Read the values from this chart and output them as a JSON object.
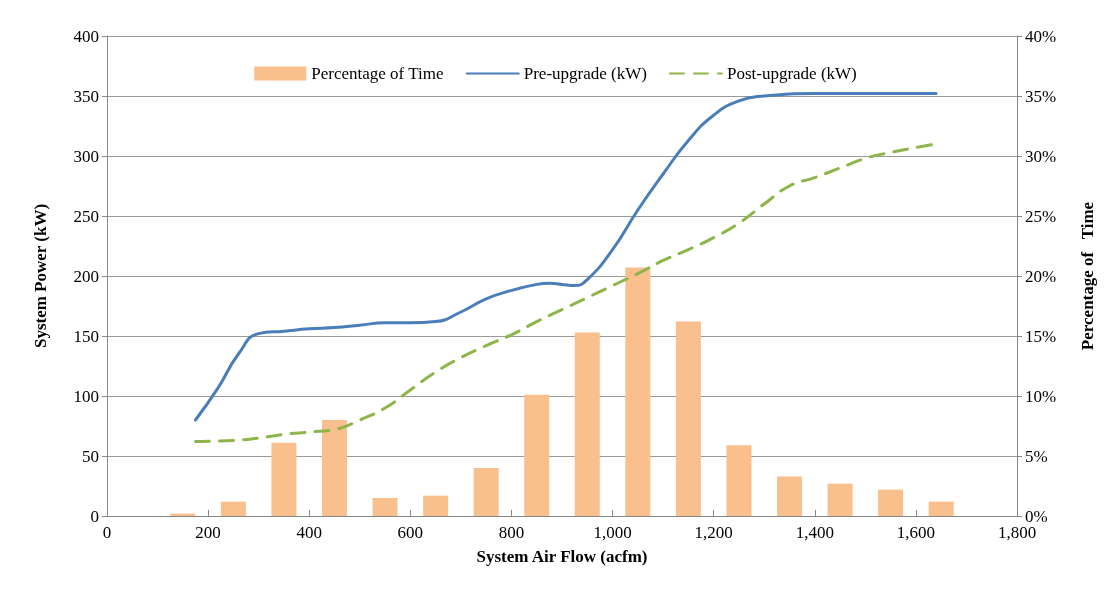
{
  "chart_data": {
    "type": "line",
    "xlabel": "System Air Flow (acfm)",
    "ylabel": "System Power (kW)",
    "y2label": "Percentage of   Time",
    "xlim": [
      0,
      1800
    ],
    "xticks": [
      0,
      200,
      400,
      600,
      800,
      {
        "value": 1000,
        "label": "1,000"
      },
      {
        "value": 1200,
        "label": "1,200"
      },
      {
        "value": 1400,
        "label": "1,400"
      },
      {
        "value": 1600,
        "label": "1,600"
      },
      {
        "value": 1800,
        "label": "1,800"
      }
    ],
    "ylim": [
      0,
      400
    ],
    "yticks": [
      0,
      50,
      100,
      150,
      200,
      250,
      300,
      350,
      400
    ],
    "y2lim": [
      0,
      40
    ],
    "y2ticks": [
      {
        "value": 0,
        "label": "0%"
      },
      {
        "value": 5,
        "label": "5%"
      },
      {
        "value": 10,
        "label": "10%"
      },
      {
        "value": 15,
        "label": "15%"
      },
      {
        "value": 20,
        "label": "20%"
      },
      {
        "value": 25,
        "label": "25%"
      },
      {
        "value": 30,
        "label": "30%"
      },
      {
        "value": 35,
        "label": "35%"
      },
      {
        "value": 40,
        "label": "40%"
      }
    ],
    "grid": "y",
    "legend": "top",
    "marker": "none",
    "series": [
      {
        "name": "Percentage of Time",
        "type": "bar",
        "axis": "y2",
        "color": "#f9c08e",
        "x": [
          150,
          250,
          350,
          450,
          550,
          650,
          750,
          850,
          950,
          1050,
          1150,
          1250,
          1350,
          1450,
          1550,
          1650
        ],
        "values": [
          0.2,
          1.2,
          6.1,
          8.0,
          1.5,
          1.7,
          4.0,
          10.1,
          15.3,
          20.7,
          16.2,
          5.9,
          3.3,
          2.7,
          2.2,
          1.2
        ]
      },
      {
        "name": "Pre-upgrade (kW)",
        "line_style": "solid",
        "color": "#4a7ebb",
        "x": [
          175,
          220,
          260,
          300,
          350,
          400,
          450,
          500,
          550,
          600,
          650,
          700,
          750,
          800,
          850,
          875,
          900,
          925,
          950,
          1000,
          1050,
          1100,
          1150,
          1200,
          1250,
          1300,
          1400,
          1500,
          1640
        ],
        "values": [
          80,
          107,
          135,
          152,
          154,
          156,
          157,
          159,
          161,
          161,
          162,
          170,
          181,
          188,
          193,
          194,
          193,
          192,
          197,
          222,
          255,
          285,
          313,
          334,
          346,
          350,
          352,
          352,
          352
        ]
      },
      {
        "name": "Post-upgrade (kW)",
        "line_style": "dashed",
        "color": "#8db54a",
        "x": [
          175,
          250,
          300,
          350,
          400,
          450,
          500,
          550,
          600,
          650,
          700,
          750,
          800,
          850,
          900,
          950,
          1000,
          1050,
          1100,
          1150,
          1200,
          1250,
          1300,
          1350,
          1400,
          1450,
          1500,
          1550,
          1600,
          1640
        ],
        "values": [
          62,
          63,
          65,
          68,
          70,
          72,
          80,
          90,
          105,
          120,
          132,
          142,
          151,
          162,
          172,
          182,
          192,
          202,
          213,
          222,
          232,
          244,
          260,
          275,
          282,
          290,
          298,
          303,
          307,
          310
        ]
      }
    ]
  }
}
